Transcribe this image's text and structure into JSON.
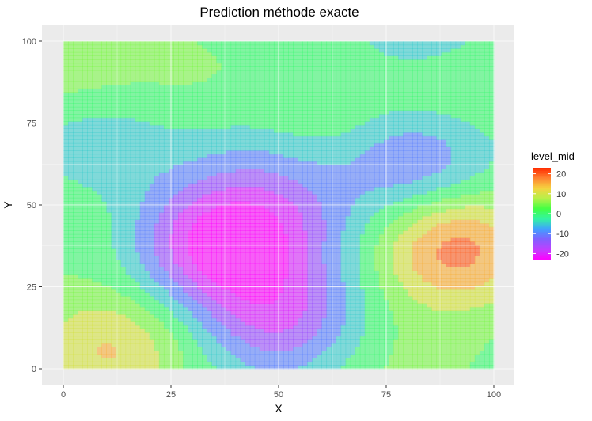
{
  "chart_data": {
    "type": "heatmap",
    "subtype": "filled-contour",
    "title": "Prediction méthode exacte",
    "xlabel": "X",
    "ylabel": "Y",
    "xlim": [
      0,
      100
    ],
    "ylim": [
      0,
      100
    ],
    "x_ticks": [
      0,
      25,
      50,
      75,
      100
    ],
    "y_ticks": [
      0,
      25,
      50,
      75,
      100
    ],
    "grid": true,
    "legend": {
      "title": "level_mid",
      "placement": "right",
      "min": -23,
      "max": 23,
      "ticks": [
        20,
        10,
        0,
        -10,
        -20
      ],
      "gradient": [
        "#ff00ff",
        "#bf40ff",
        "#8060ff",
        "#3fa2ff",
        "#33f5a0",
        "#44ff44",
        "#b8f04a",
        "#f5d340",
        "#ff8030",
        "#ff2a00"
      ]
    },
    "features": [
      {
        "x": 35,
        "y": 38,
        "level": -22
      },
      {
        "x": 50,
        "y": 16,
        "level": -17
      },
      {
        "x": 82,
        "y": 64,
        "level": -14
      },
      {
        "x": 52,
        "y": 44,
        "level": -9
      },
      {
        "x": 45,
        "y": 60,
        "level": -6
      },
      {
        "x": 8,
        "y": 68,
        "level": -7
      },
      {
        "x": 84,
        "y": 100,
        "level": -8
      },
      {
        "x": 91,
        "y": 37,
        "level": 20
      },
      {
        "x": 11,
        "y": 6,
        "level": 13
      },
      {
        "x": 88,
        "y": 86,
        "level": 7
      },
      {
        "x": 62,
        "y": 78,
        "level": 4
      },
      {
        "x": 28,
        "y": 90,
        "level": 3
      },
      {
        "x": 0,
        "y": 93,
        "level": 6
      },
      {
        "x": 2,
        "y": 48,
        "level": 3
      },
      {
        "x": 80,
        "y": 0,
        "level": 4
      }
    ]
  }
}
